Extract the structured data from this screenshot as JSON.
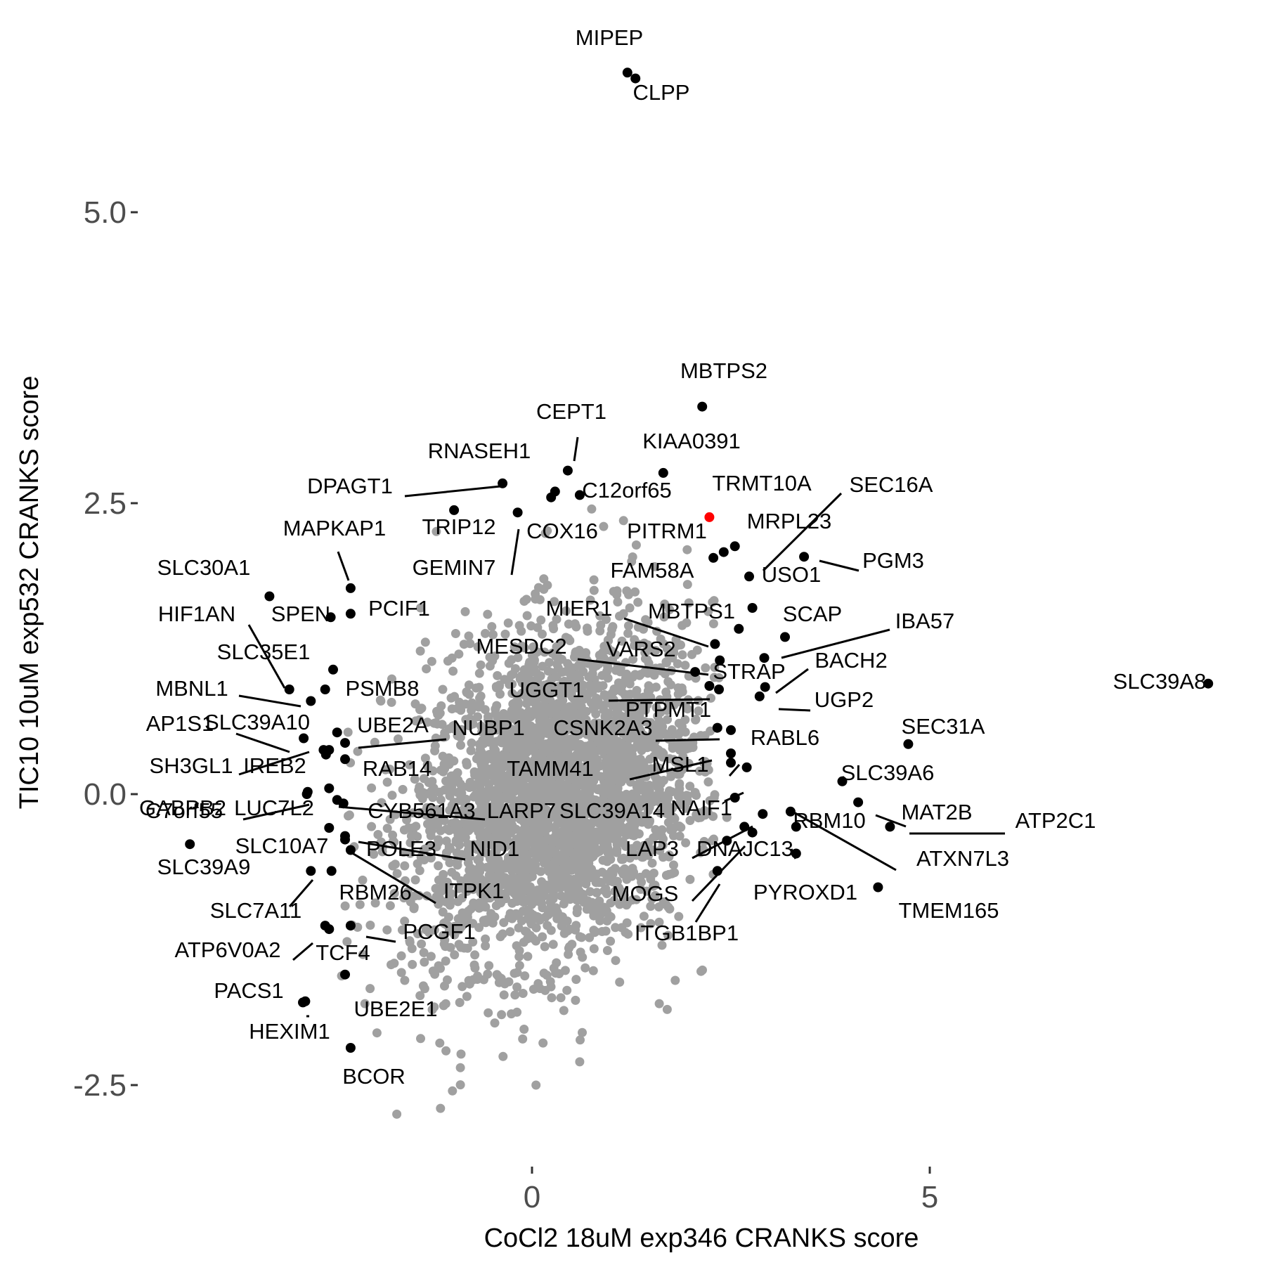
{
  "chart_data": {
    "type": "scatter",
    "xlabel": "CoCl2 18uM exp346 CRANKS score",
    "ylabel": "TIC10 10uM exp532 CRANKS score",
    "xlim": [
      -5.2,
      8.5
    ],
    "ylim": [
      -3.4,
      6.7
    ],
    "x_ticks": [
      {
        "value": 0,
        "label": "0"
      },
      {
        "value": 5,
        "label": "5"
      }
    ],
    "y_ticks": [
      {
        "value": -2.5,
        "label": "-2.5"
      },
      {
        "value": 0,
        "label": "0.0"
      },
      {
        "value": 2.5,
        "label": "2.5"
      },
      {
        "value": 5,
        "label": "5.0"
      }
    ],
    "grid": false,
    "legend": "none",
    "colors": {
      "background_points": "#a0a0a0",
      "labeled_points": "#000000",
      "highlight_point": "#ff0000"
    },
    "background_cloud": {
      "description": "gray points for all non-labeled genes",
      "center": [
        0.3,
        0.0
      ],
      "spread": [
        0.95,
        0.7
      ],
      "count": 3200,
      "extra_points": [
        [
          1.15,
          2.35
        ],
        [
          0.9,
          2.3
        ],
        [
          0.75,
          2.45
        ],
        [
          -1.7,
          -2.75
        ],
        [
          -1.15,
          -2.7
        ],
        [
          0.05,
          -2.5
        ],
        [
          1.7,
          -1.85
        ],
        [
          1.6,
          -1.8
        ],
        [
          -1.4,
          -2.1
        ],
        [
          -1.6,
          -1.6
        ],
        [
          -2.1,
          -1.8
        ],
        [
          1.8,
          -1.6
        ],
        [
          0.6,
          -2.3
        ],
        [
          -1.0,
          -2.55
        ],
        [
          -0.9,
          -2.35
        ],
        [
          1.15,
          1.55
        ],
        [
          -1.4,
          1.6
        ],
        [
          -1.9,
          0.8
        ],
        [
          2.35,
          1.0
        ],
        [
          2.45,
          -0.2
        ]
      ]
    },
    "points": [
      {
        "label": "MIPEP",
        "x": 1.2,
        "y": 6.2
      },
      {
        "label": "CLPP",
        "x": 1.3,
        "y": 6.15
      },
      {
        "label": "MBTPS2",
        "x": 2.14,
        "y": 3.33
      },
      {
        "label": "CEPT1",
        "x": 0.45,
        "y": 2.78
      },
      {
        "label": "KIAA0391",
        "x": 1.65,
        "y": 2.76
      },
      {
        "label": "RNASEH1",
        "x": -0.37,
        "y": 2.67
      },
      {
        "label": "TRMT10A",
        "x": 2.23,
        "y": 2.38,
        "highlight": true
      },
      {
        "label": "DPAGT1",
        "x": -0.98,
        "y": 2.44
      },
      {
        "label": "C12orf65",
        "x": 0.6,
        "y": 2.57
      },
      {
        "label": "TRIP12",
        "x": 0.29,
        "y": 2.6
      },
      {
        "label": "COX16",
        "x": 0.24,
        "y": 2.55
      },
      {
        "label": "GEMIN7",
        "x": -0.18,
        "y": 2.42
      },
      {
        "label": "PITRM1",
        "x": 2.55,
        "y": 2.13
      },
      {
        "label": "MRPL23",
        "x": 2.41,
        "y": 2.08
      },
      {
        "label": "SEC16A",
        "x": 2.28,
        "y": 2.03
      },
      {
        "label": "PGM3",
        "x": 3.42,
        "y": 2.04
      },
      {
        "label": "USO1",
        "x": 2.73,
        "y": 1.87
      },
      {
        "label": "MAPKAP1",
        "x": -2.28,
        "y": 1.77
      },
      {
        "label": "SLC30A1",
        "x": -3.3,
        "y": 1.7
      },
      {
        "label": "FAM58A",
        "x": 2.77,
        "y": 1.6
      },
      {
        "label": "PCIF1",
        "x": -2.28,
        "y": 1.55
      },
      {
        "label": "SPEN",
        "x": -2.53,
        "y": 1.52
      },
      {
        "label": "SCAP",
        "x": 3.18,
        "y": 1.35
      },
      {
        "label": "MBTPS1",
        "x": 2.6,
        "y": 1.42
      },
      {
        "label": "MIER1",
        "x": 2.3,
        "y": 1.29
      },
      {
        "label": "IBA57",
        "x": 2.92,
        "y": 1.17
      },
      {
        "label": "VARS2",
        "x": 2.36,
        "y": 1.15
      },
      {
        "label": "SLC35E1",
        "x": -2.5,
        "y": 1.07
      },
      {
        "label": "MESDC2",
        "x": 2.05,
        "y": 1.05
      },
      {
        "label": "BACH2",
        "x": 2.93,
        "y": 0.92
      },
      {
        "label": "STRAP",
        "x": 2.35,
        "y": 0.9
      },
      {
        "label": "HIF1AN",
        "x": -3.05,
        "y": 0.9
      },
      {
        "label": "MBNL1",
        "x": -2.78,
        "y": 0.8
      },
      {
        "label": "PSMB8",
        "x": -2.6,
        "y": 0.9
      },
      {
        "label": "UGP2",
        "x": 2.86,
        "y": 0.84
      },
      {
        "label": "SLC39A8",
        "x": 8.5,
        "y": 0.95
      },
      {
        "label": "UGGT1",
        "x": 2.23,
        "y": 0.93
      },
      {
        "label": "PTPMT1",
        "x": 2.5,
        "y": 0.55
      },
      {
        "label": "CSNK2A3",
        "x": 2.33,
        "y": 0.57
      },
      {
        "label": "AP1S1",
        "x": -2.87,
        "y": 0.48
      },
      {
        "label": "SLC39A10",
        "x": -2.45,
        "y": 0.53
      },
      {
        "label": "UBE2A",
        "x": -2.55,
        "y": 0.38
      },
      {
        "label": "NUBP1",
        "x": -2.35,
        "y": 0.44
      },
      {
        "label": "RABL6",
        "x": 2.5,
        "y": 0.27
      },
      {
        "label": "SEC31A",
        "x": 4.73,
        "y": 0.43
      },
      {
        "label": "SH3GL1",
        "x": -2.62,
        "y": 0.38
      },
      {
        "label": "IREB2",
        "x": -2.59,
        "y": 0.34
      },
      {
        "label": "RAB14",
        "x": -2.35,
        "y": 0.3
      },
      {
        "label": "TAMM41",
        "x": 2.5,
        "y": 0.35
      },
      {
        "label": "MSL1",
        "x": 2.7,
        "y": 0.23
      },
      {
        "label": "SLC39A6",
        "x": 3.9,
        "y": 0.11
      },
      {
        "label": "ATP2C1",
        "x": 4.5,
        "y": -0.28
      },
      {
        "label": "MAT2B",
        "x": 4.1,
        "y": -0.07
      },
      {
        "label": "LUC7L2",
        "x": -2.55,
        "y": 0.05
      },
      {
        "label": "C7orf55",
        "x": -2.83,
        "y": 0.0
      },
      {
        "label": "CYB561A3",
        "x": -2.37,
        "y": -0.08
      },
      {
        "label": "LARP7",
        "x": -2.45,
        "y": -0.05
      },
      {
        "label": "NAIF1",
        "x": 2.55,
        "y": -0.03
      },
      {
        "label": "SLC39A14",
        "x": 2.9,
        "y": -0.17
      },
      {
        "label": "RBM10",
        "x": 3.25,
        "y": -0.15
      },
      {
        "label": "ATXN7L3",
        "x": 3.32,
        "y": -0.28
      },
      {
        "label": "GABPB2",
        "x": -2.82,
        "y": 0.02
      },
      {
        "label": "SLC39A9",
        "x": -4.3,
        "y": -0.43
      },
      {
        "label": "SLC10A7",
        "x": -2.35,
        "y": -0.39
      },
      {
        "label": "NID1",
        "x": -2.35,
        "y": -0.36
      },
      {
        "label": "POLE3",
        "x": -2.55,
        "y": -0.29
      },
      {
        "label": "LAP3",
        "x": 2.67,
        "y": -0.28
      },
      {
        "label": "DNAJC13",
        "x": 2.77,
        "y": -0.33
      },
      {
        "label": "PYROXD1",
        "x": 3.32,
        "y": -0.51
      },
      {
        "label": "SLC7A11",
        "x": -2.78,
        "y": -0.66
      },
      {
        "label": "RBM26",
        "x": -2.52,
        "y": -0.66
      },
      {
        "label": "ITPK1",
        "x": -2.28,
        "y": -0.48
      },
      {
        "label": "TMEM165",
        "x": 4.35,
        "y": -0.8
      },
      {
        "label": "MOGS",
        "x": 2.33,
        "y": -0.66
      },
      {
        "label": "ITGB1BP1",
        "x": 2.45,
        "y": -0.4
      },
      {
        "label": "ATP6V0A2",
        "x": -2.6,
        "y": -1.13
      },
      {
        "label": "TCF4",
        "x": -2.55,
        "y": -1.16
      },
      {
        "label": "PCGF1",
        "x": -2.28,
        "y": -1.13
      },
      {
        "label": "PACS1",
        "x": -2.85,
        "y": -1.78
      },
      {
        "label": "UBE2E1",
        "x": -2.35,
        "y": -1.55
      },
      {
        "label": "HEXIM1",
        "x": -2.88,
        "y": -1.79
      },
      {
        "label": "BCOR",
        "x": -2.28,
        "y": -2.18
      }
    ]
  }
}
